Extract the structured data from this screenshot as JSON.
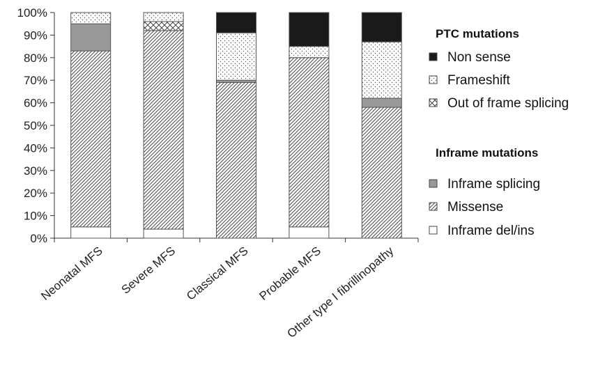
{
  "chart_data": {
    "type": "bar",
    "stacked": true,
    "categories": [
      "Neonatal MFS",
      "Severe MFS",
      "Classical MFS",
      "Probable MFS",
      "Other type I fibrillinopathy"
    ],
    "ylim": [
      0,
      100
    ],
    "ytick_step": 10,
    "ytick_format": "{v}%",
    "grid": false,
    "legend_position": "right",
    "legend_groups": [
      {
        "title": "PTC mutations",
        "series": [
          "Non sense",
          "Frameshift",
          "Out of frame splicing"
        ]
      },
      {
        "title": "Inframe mutations",
        "series": [
          "Inframe splicing",
          "Missense",
          "Inframe del/ins"
        ]
      }
    ],
    "series": [
      {
        "name": "Inframe del/ins",
        "pattern": "white",
        "values": [
          5,
          4,
          0,
          5,
          0
        ]
      },
      {
        "name": "Missense",
        "pattern": "diagonal-hatch",
        "values": [
          78,
          88,
          69,
          75,
          58
        ]
      },
      {
        "name": "Inframe splicing",
        "pattern": "gray",
        "values": [
          12,
          0,
          1,
          0,
          4
        ]
      },
      {
        "name": "Out of frame splicing",
        "pattern": "cross-hatch",
        "values": [
          0,
          4,
          0,
          0,
          0
        ]
      },
      {
        "name": "Frameshift",
        "pattern": "dots",
        "values": [
          5,
          4,
          21,
          5,
          25
        ]
      },
      {
        "name": "Non sense",
        "pattern": "black",
        "values": [
          0,
          0,
          9,
          15,
          13
        ]
      }
    ],
    "colors": {
      "black": "#1a1a1a",
      "gray": "#999999",
      "edge": "#555555"
    }
  }
}
